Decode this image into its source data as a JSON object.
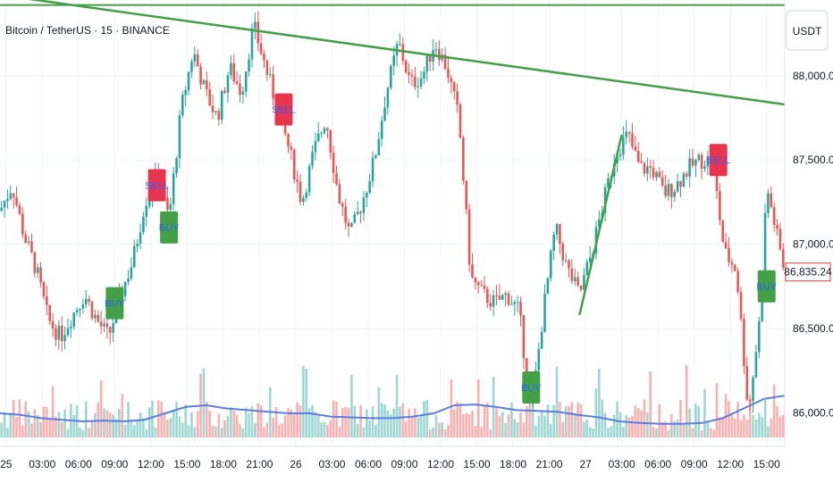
{
  "header": {
    "symbol_title": "Bitcoin / TetherUS · 15 · BINANCE"
  },
  "price_axis": {
    "currency_label": "USDT",
    "current_price_label": "86,835.24"
  },
  "colors": {
    "up": "#26a69a",
    "down": "#ef5350",
    "trendline": "#43a047",
    "ma_line": "#5b7ee5",
    "buy_badge": "#43a047",
    "sell_badge": "#e8344e",
    "current_price": "#f23645",
    "grid": "#f0f3fa"
  },
  "chart_data": {
    "type": "candlestick",
    "title": "Bitcoin / TetherUS · 15 · BINANCE",
    "y_axis": {
      "min": 85800,
      "max": 88450,
      "ticks": [
        86000,
        86500,
        87000,
        87500,
        88000
      ],
      "tick_labels": [
        "86,000.00",
        "86,500.00",
        "87,000.00",
        "87,500.00",
        "88,000.00"
      ],
      "side": "right"
    },
    "x_axis": {
      "range": [
        "2025-11-24 23:30",
        "2025-11-27 16:30"
      ],
      "tick_labels": [
        "25",
        "03:00",
        "06:00",
        "09:00",
        "12:00",
        "15:00",
        "18:00",
        "21:00",
        "26",
        "03:00",
        "06:00",
        "09:00",
        "12:00",
        "15:00",
        "18:00",
        "21:00",
        "27",
        "03:00",
        "06:00",
        "09:00",
        "12:00",
        "15:00"
      ]
    },
    "grid": true,
    "price_path": [
      [
        "2025-11-24 23:30",
        87200
      ],
      [
        "2025-11-25 00:30",
        87350
      ],
      [
        "2025-11-25 01:30",
        87050
      ],
      [
        "2025-11-25 02:30",
        86850
      ],
      [
        "2025-11-25 03:30",
        86550
      ],
      [
        "2025-11-25 04:30",
        86450
      ],
      [
        "2025-11-25 05:30",
        86580
      ],
      [
        "2025-11-25 06:30",
        86700
      ],
      [
        "2025-11-25 07:30",
        86550
      ],
      [
        "2025-11-25 08:30",
        86450
      ],
      [
        "2025-11-25 09:30",
        86700
      ],
      [
        "2025-11-25 10:30",
        86900
      ],
      [
        "2025-11-25 11:30",
        87250
      ],
      [
        "2025-11-25 12:30",
        87400
      ],
      [
        "2025-11-25 13:30",
        87150
      ],
      [
        "2025-11-25 14:30",
        87800
      ],
      [
        "2025-11-25 15:30",
        88150
      ],
      [
        "2025-11-25 16:30",
        87900
      ],
      [
        "2025-11-25 17:30",
        87750
      ],
      [
        "2025-11-25 18:30",
        88050
      ],
      [
        "2025-11-25 19:30",
        87900
      ],
      [
        "2025-11-25 20:30",
        88300
      ],
      [
        "2025-11-25 21:30",
        88050
      ],
      [
        "2025-11-25 22:30",
        87800
      ],
      [
        "2025-11-25 23:30",
        87550
      ],
      [
        "2025-11-26 00:30",
        87250
      ],
      [
        "2025-11-26 01:30",
        87550
      ],
      [
        "2025-11-26 02:30",
        87750
      ],
      [
        "2025-11-26 03:30",
        87300
      ],
      [
        "2025-11-26 04:30",
        87050
      ],
      [
        "2025-11-26 05:30",
        87250
      ],
      [
        "2025-11-26 06:30",
        87500
      ],
      [
        "2025-11-26 07:30",
        87900
      ],
      [
        "2025-11-26 08:30",
        88200
      ],
      [
        "2025-11-26 09:30",
        87950
      ],
      [
        "2025-11-26 10:30",
        88000
      ],
      [
        "2025-11-26 11:30",
        88200
      ],
      [
        "2025-11-26 12:30",
        88050
      ],
      [
        "2025-11-26 13:30",
        87750
      ],
      [
        "2025-11-26 14:30",
        86800
      ],
      [
        "2025-11-26 15:30",
        86700
      ],
      [
        "2025-11-26 16:30",
        86650
      ],
      [
        "2025-11-26 17:30",
        86700
      ],
      [
        "2025-11-26 18:30",
        86600
      ],
      [
        "2025-11-26 19:30",
        86000
      ],
      [
        "2025-11-26 20:30",
        86600
      ],
      [
        "2025-11-26 21:30",
        87100
      ],
      [
        "2025-11-26 22:30",
        86850
      ],
      [
        "2025-11-26 23:30",
        86700
      ],
      [
        "2025-11-27 00:30",
        86950
      ],
      [
        "2025-11-27 01:30",
        87250
      ],
      [
        "2025-11-27 02:30",
        87550
      ],
      [
        "2025-11-27 03:30",
        87650
      ],
      [
        "2025-11-27 04:30",
        87450
      ],
      [
        "2025-11-27 05:30",
        87450
      ],
      [
        "2025-11-27 06:30",
        87300
      ],
      [
        "2025-11-27 07:30",
        87350
      ],
      [
        "2025-11-27 08:30",
        87450
      ],
      [
        "2025-11-27 09:30",
        87500
      ],
      [
        "2025-11-27 10:30",
        87500
      ],
      [
        "2025-11-27 11:30",
        86950
      ],
      [
        "2025-11-27 12:30",
        86850
      ],
      [
        "2025-11-27 13:30",
        86000
      ],
      [
        "2025-11-27 14:30",
        86600
      ],
      [
        "2025-11-27 15:00",
        87350
      ],
      [
        "2025-11-27 16:00",
        87000
      ],
      [
        "2025-11-27 16:30",
        86835.24
      ]
    ],
    "volume_ma_path": [
      0.3,
      0.28,
      0.24,
      0.22,
      0.2,
      0.21,
      0.2,
      0.22,
      0.3,
      0.38,
      0.4,
      0.36,
      0.34,
      0.32,
      0.3,
      0.3,
      0.26,
      0.25,
      0.24,
      0.24,
      0.26,
      0.3,
      0.4,
      0.41,
      0.38,
      0.34,
      0.33,
      0.32,
      0.28,
      0.25,
      0.2,
      0.18,
      0.17,
      0.17,
      0.18,
      0.24,
      0.36,
      0.48,
      0.52
    ],
    "signals": [
      {
        "label": "BUY",
        "time": "2025-11-25 09:00",
        "price": 86650
      },
      {
        "label": "SELL",
        "time": "2025-11-25 12:30",
        "price": 87350
      },
      {
        "label": "BUY",
        "time": "2025-11-25 13:30",
        "price": 87100
      },
      {
        "label": "SELL",
        "time": "2025-11-25 23:00",
        "price": 87800
      },
      {
        "label": "BUY",
        "time": "2025-11-26 19:30",
        "price": 86150
      },
      {
        "label": "SELL",
        "time": "2025-11-27 11:00",
        "price": 87500
      },
      {
        "label": "BUY",
        "time": "2025-11-27 15:00",
        "price": 86750
      }
    ],
    "lines": [
      {
        "name": "horizontal-level-1",
        "price": 88460
      },
      {
        "name": "horizontal-level-2",
        "price": 88420
      },
      {
        "name": "downtrend-line",
        "from": [
          "2025-11-24 23:30",
          88480
        ],
        "to": [
          "2025-11-27 16:30",
          87830
        ]
      },
      {
        "name": "uptrend-line",
        "from": [
          "2025-11-26 23:30",
          86580
        ],
        "to": [
          "2025-11-27 03:00",
          87650
        ]
      }
    ]
  }
}
